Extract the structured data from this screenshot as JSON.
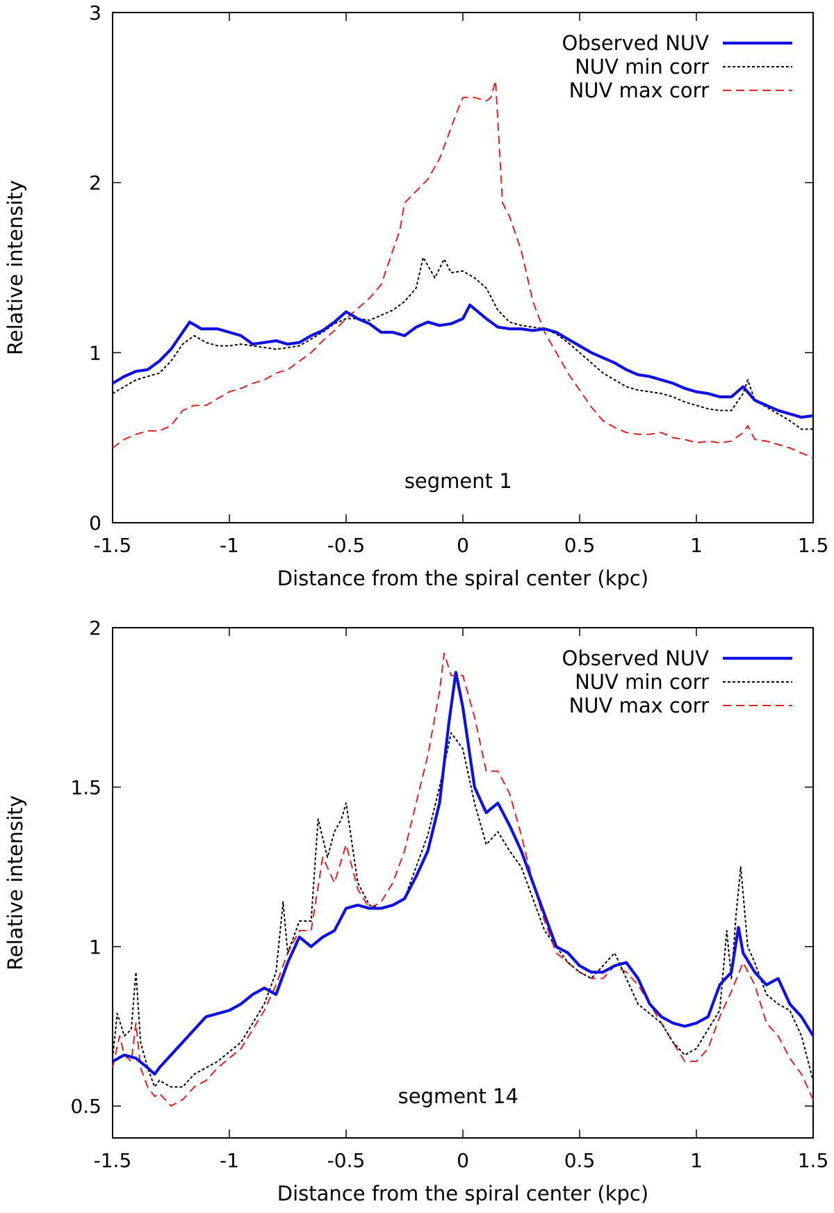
{
  "chart_data": [
    {
      "type": "line",
      "annotation": "segment 1",
      "xlabel": "Distance from the spiral center (kpc)",
      "ylabel": "Relative intensity",
      "xlim": [
        -1.5,
        1.5
      ],
      "ylim": [
        0,
        3
      ],
      "xticks": [
        "-1.5",
        "-1",
        "-0.5",
        "0",
        "0.5",
        "1",
        "1.5"
      ],
      "yticks": [
        "0",
        "1",
        "2",
        "3"
      ],
      "grid": false,
      "legend_position": "top-right",
      "series": [
        {
          "name": "Observed NUV",
          "color": "#1010e0",
          "style": "solid-thick",
          "x": [
            -1.5,
            -1.45,
            -1.4,
            -1.35,
            -1.3,
            -1.25,
            -1.2,
            -1.17,
            -1.12,
            -1.05,
            -1.0,
            -0.95,
            -0.9,
            -0.85,
            -0.8,
            -0.75,
            -0.7,
            -0.65,
            -0.6,
            -0.55,
            -0.5,
            -0.45,
            -0.4,
            -0.35,
            -0.3,
            -0.25,
            -0.2,
            -0.15,
            -0.1,
            -0.05,
            0.0,
            0.03,
            0.1,
            0.15,
            0.2,
            0.25,
            0.3,
            0.35,
            0.4,
            0.45,
            0.5,
            0.55,
            0.6,
            0.65,
            0.7,
            0.75,
            0.8,
            0.85,
            0.9,
            0.95,
            1.0,
            1.05,
            1.1,
            1.15,
            1.2,
            1.25,
            1.3,
            1.35,
            1.4,
            1.45,
            1.5
          ],
          "y": [
            0.82,
            0.86,
            0.89,
            0.9,
            0.95,
            1.02,
            1.12,
            1.18,
            1.14,
            1.14,
            1.12,
            1.1,
            1.05,
            1.06,
            1.07,
            1.05,
            1.06,
            1.1,
            1.13,
            1.18,
            1.24,
            1.2,
            1.17,
            1.12,
            1.12,
            1.1,
            1.15,
            1.18,
            1.16,
            1.17,
            1.2,
            1.28,
            1.2,
            1.15,
            1.14,
            1.14,
            1.13,
            1.14,
            1.12,
            1.08,
            1.04,
            1.0,
            0.97,
            0.94,
            0.9,
            0.87,
            0.86,
            0.84,
            0.82,
            0.79,
            0.77,
            0.76,
            0.74,
            0.74,
            0.8,
            0.72,
            0.69,
            0.66,
            0.64,
            0.62,
            0.63
          ]
        },
        {
          "name": "NUV min corr",
          "color": "#000000",
          "style": "dotted",
          "x": [
            -1.5,
            -1.45,
            -1.4,
            -1.35,
            -1.3,
            -1.25,
            -1.2,
            -1.15,
            -1.1,
            -1.05,
            -1.0,
            -0.95,
            -0.9,
            -0.85,
            -0.8,
            -0.75,
            -0.7,
            -0.65,
            -0.6,
            -0.55,
            -0.5,
            -0.45,
            -0.4,
            -0.35,
            -0.3,
            -0.25,
            -0.2,
            -0.17,
            -0.12,
            -0.08,
            -0.05,
            0.0,
            0.05,
            0.1,
            0.15,
            0.2,
            0.25,
            0.3,
            0.35,
            0.4,
            0.45,
            0.5,
            0.55,
            0.6,
            0.65,
            0.7,
            0.75,
            0.8,
            0.85,
            0.9,
            0.95,
            1.0,
            1.05,
            1.1,
            1.15,
            1.2,
            1.22,
            1.25,
            1.3,
            1.35,
            1.4,
            1.45,
            1.5
          ],
          "y": [
            0.76,
            0.8,
            0.84,
            0.86,
            0.88,
            0.95,
            1.05,
            1.1,
            1.06,
            1.04,
            1.04,
            1.05,
            1.04,
            1.03,
            1.02,
            1.03,
            1.04,
            1.08,
            1.12,
            1.17,
            1.2,
            1.2,
            1.19,
            1.22,
            1.25,
            1.3,
            1.38,
            1.56,
            1.44,
            1.55,
            1.47,
            1.48,
            1.44,
            1.38,
            1.25,
            1.18,
            1.16,
            1.15,
            1.14,
            1.11,
            1.06,
            1.0,
            0.94,
            0.88,
            0.84,
            0.8,
            0.78,
            0.77,
            0.76,
            0.74,
            0.71,
            0.69,
            0.67,
            0.66,
            0.66,
            0.76,
            0.84,
            0.72,
            0.68,
            0.64,
            0.6,
            0.55,
            0.55
          ]
        },
        {
          "name": "NUV max corr",
          "color": "#e02020",
          "style": "dashed",
          "x": [
            -1.5,
            -1.45,
            -1.4,
            -1.35,
            -1.3,
            -1.25,
            -1.2,
            -1.15,
            -1.1,
            -1.05,
            -1.0,
            -0.95,
            -0.9,
            -0.85,
            -0.8,
            -0.75,
            -0.7,
            -0.65,
            -0.6,
            -0.55,
            -0.5,
            -0.45,
            -0.4,
            -0.35,
            -0.3,
            -0.27,
            -0.25,
            -0.2,
            -0.15,
            -0.1,
            -0.07,
            -0.03,
            0.0,
            0.05,
            0.1,
            0.12,
            0.14,
            0.17,
            0.2,
            0.25,
            0.3,
            0.35,
            0.4,
            0.45,
            0.5,
            0.55,
            0.6,
            0.65,
            0.7,
            0.75,
            0.8,
            0.85,
            0.9,
            0.95,
            1.0,
            1.05,
            1.1,
            1.15,
            1.2,
            1.22,
            1.25,
            1.3,
            1.35,
            1.4,
            1.45,
            1.5
          ],
          "y": [
            0.44,
            0.49,
            0.52,
            0.54,
            0.54,
            0.57,
            0.66,
            0.69,
            0.69,
            0.73,
            0.77,
            0.79,
            0.82,
            0.84,
            0.88,
            0.9,
            0.95,
            1.0,
            1.07,
            1.13,
            1.2,
            1.26,
            1.32,
            1.4,
            1.6,
            1.72,
            1.88,
            1.95,
            2.02,
            2.14,
            2.25,
            2.4,
            2.5,
            2.5,
            2.48,
            2.5,
            2.6,
            1.88,
            1.8,
            1.6,
            1.3,
            1.12,
            1.0,
            0.88,
            0.78,
            0.68,
            0.6,
            0.56,
            0.53,
            0.52,
            0.52,
            0.53,
            0.5,
            0.49,
            0.47,
            0.48,
            0.47,
            0.48,
            0.53,
            0.57,
            0.49,
            0.48,
            0.46,
            0.44,
            0.41,
            0.38
          ]
        }
      ]
    },
    {
      "type": "line",
      "annotation": "segment 14",
      "xlabel": "Distance from the spiral center (kpc)",
      "ylabel": "Relative intensity",
      "xlim": [
        -1.5,
        1.5
      ],
      "ylim": [
        0.4,
        2
      ],
      "xticks": [
        "-1.5",
        "-1",
        "-0.5",
        "0",
        "0.5",
        "1",
        "1.5"
      ],
      "yticks": [
        "0.5",
        "1",
        "1.5",
        "2"
      ],
      "grid": false,
      "legend_position": "top-right",
      "series": [
        {
          "name": "Observed NUV",
          "color": "#1010e0",
          "style": "solid-thick",
          "x": [
            -1.5,
            -1.45,
            -1.4,
            -1.35,
            -1.32,
            -1.3,
            -1.25,
            -1.2,
            -1.15,
            -1.1,
            -1.05,
            -1.0,
            -0.95,
            -0.9,
            -0.85,
            -0.8,
            -0.75,
            -0.7,
            -0.65,
            -0.6,
            -0.55,
            -0.5,
            -0.45,
            -0.4,
            -0.35,
            -0.3,
            -0.25,
            -0.2,
            -0.15,
            -0.1,
            -0.06,
            -0.03,
            0.0,
            0.05,
            0.1,
            0.15,
            0.2,
            0.25,
            0.3,
            0.35,
            0.4,
            0.45,
            0.5,
            0.55,
            0.6,
            0.65,
            0.7,
            0.75,
            0.8,
            0.85,
            0.9,
            0.95,
            1.0,
            1.05,
            1.1,
            1.15,
            1.18,
            1.2,
            1.25,
            1.3,
            1.35,
            1.4,
            1.45,
            1.5
          ],
          "y": [
            0.64,
            0.66,
            0.65,
            0.62,
            0.6,
            0.62,
            0.66,
            0.7,
            0.74,
            0.78,
            0.79,
            0.8,
            0.82,
            0.85,
            0.87,
            0.85,
            0.95,
            1.03,
            1.0,
            1.03,
            1.05,
            1.12,
            1.13,
            1.12,
            1.12,
            1.13,
            1.15,
            1.22,
            1.3,
            1.45,
            1.7,
            1.86,
            1.75,
            1.5,
            1.42,
            1.45,
            1.38,
            1.3,
            1.2,
            1.1,
            1.0,
            0.98,
            0.94,
            0.92,
            0.92,
            0.94,
            0.95,
            0.9,
            0.82,
            0.78,
            0.76,
            0.75,
            0.76,
            0.78,
            0.88,
            0.92,
            1.06,
            0.98,
            0.92,
            0.88,
            0.9,
            0.82,
            0.78,
            0.72
          ]
        },
        {
          "name": "NUV min corr",
          "color": "#000000",
          "style": "dotted",
          "x": [
            -1.5,
            -1.48,
            -1.45,
            -1.42,
            -1.4,
            -1.38,
            -1.35,
            -1.32,
            -1.3,
            -1.25,
            -1.2,
            -1.15,
            -1.1,
            -1.05,
            -1.0,
            -0.95,
            -0.9,
            -0.85,
            -0.8,
            -0.77,
            -0.75,
            -0.7,
            -0.65,
            -0.62,
            -0.58,
            -0.55,
            -0.52,
            -0.5,
            -0.45,
            -0.4,
            -0.35,
            -0.3,
            -0.25,
            -0.2,
            -0.15,
            -0.1,
            -0.05,
            0.0,
            0.05,
            0.1,
            0.15,
            0.2,
            0.25,
            0.3,
            0.35,
            0.4,
            0.45,
            0.5,
            0.55,
            0.6,
            0.65,
            0.7,
            0.75,
            0.8,
            0.85,
            0.9,
            0.95,
            1.0,
            1.05,
            1.1,
            1.13,
            1.15,
            1.17,
            1.19,
            1.22,
            1.25,
            1.3,
            1.35,
            1.4,
            1.45,
            1.5
          ],
          "y": [
            0.65,
            0.79,
            0.72,
            0.74,
            0.92,
            0.7,
            0.62,
            0.56,
            0.58,
            0.56,
            0.56,
            0.6,
            0.62,
            0.64,
            0.67,
            0.7,
            0.76,
            0.82,
            0.92,
            1.14,
            0.98,
            1.08,
            1.08,
            1.4,
            1.28,
            1.36,
            1.4,
            1.45,
            1.2,
            1.13,
            1.12,
            1.13,
            1.15,
            1.25,
            1.35,
            1.5,
            1.67,
            1.62,
            1.45,
            1.32,
            1.36,
            1.3,
            1.25,
            1.15,
            1.05,
            1.0,
            0.95,
            0.92,
            0.9,
            0.94,
            0.98,
            0.9,
            0.82,
            0.79,
            0.76,
            0.7,
            0.66,
            0.68,
            0.74,
            0.8,
            1.05,
            0.9,
            1.1,
            1.25,
            1.0,
            0.95,
            0.85,
            0.82,
            0.8,
            0.72,
            0.58
          ]
        },
        {
          "name": "NUV max corr",
          "color": "#e02020",
          "style": "dashed",
          "x": [
            -1.5,
            -1.47,
            -1.45,
            -1.42,
            -1.4,
            -1.38,
            -1.35,
            -1.32,
            -1.3,
            -1.25,
            -1.2,
            -1.15,
            -1.1,
            -1.05,
            -1.0,
            -0.95,
            -0.9,
            -0.85,
            -0.8,
            -0.75,
            -0.7,
            -0.65,
            -0.6,
            -0.55,
            -0.5,
            -0.45,
            -0.4,
            -0.35,
            -0.3,
            -0.25,
            -0.2,
            -0.15,
            -0.1,
            -0.08,
            -0.05,
            0.0,
            0.05,
            0.1,
            0.15,
            0.2,
            0.25,
            0.3,
            0.35,
            0.4,
            0.45,
            0.5,
            0.55,
            0.6,
            0.65,
            0.7,
            0.75,
            0.8,
            0.85,
            0.9,
            0.95,
            1.0,
            1.05,
            1.1,
            1.15,
            1.2,
            1.25,
            1.3,
            1.35,
            1.4,
            1.45,
            1.5
          ],
          "y": [
            0.62,
            0.72,
            0.66,
            0.64,
            0.76,
            0.62,
            0.56,
            0.53,
            0.54,
            0.5,
            0.52,
            0.56,
            0.58,
            0.62,
            0.65,
            0.68,
            0.74,
            0.8,
            0.88,
            0.98,
            1.05,
            1.05,
            1.28,
            1.2,
            1.32,
            1.18,
            1.12,
            1.14,
            1.2,
            1.3,
            1.45,
            1.6,
            1.8,
            1.92,
            1.85,
            1.85,
            1.72,
            1.55,
            1.55,
            1.48,
            1.35,
            1.2,
            1.08,
            0.98,
            0.95,
            0.92,
            0.9,
            0.9,
            0.94,
            0.92,
            0.88,
            0.82,
            0.76,
            0.7,
            0.64,
            0.64,
            0.68,
            0.78,
            0.86,
            0.95,
            0.88,
            0.76,
            0.72,
            0.65,
            0.6,
            0.52
          ]
        }
      ]
    }
  ]
}
